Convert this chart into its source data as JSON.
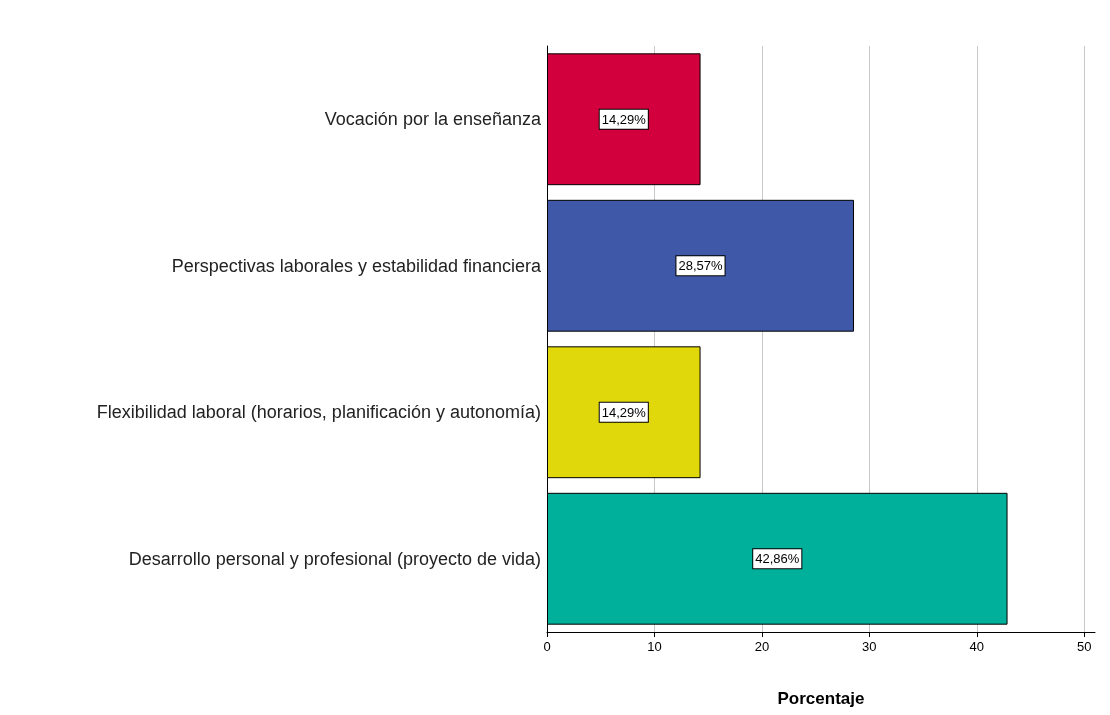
{
  "chart_data": {
    "type": "bar",
    "orientation": "horizontal",
    "xlabel": "Porcentaje",
    "categories": [
      "Vocación por la enseñanza",
      "Perspectivas laborales y estabilidad financiera",
      "Flexibilidad laboral (horarios, planificación y autonomía)",
      "Desarrollo personal y profesional (proyecto de vida)"
    ],
    "values": [
      14.29,
      28.57,
      14.29,
      42.86
    ],
    "colors": [
      "#d2003c",
      "#3f59a8",
      "#e1d80b",
      "#00b09b"
    ],
    "value_labels": [
      "14,29%",
      "28,57%",
      "14,29%",
      "42,86%"
    ],
    "xlim": [
      0,
      51
    ],
    "xticks": [
      0,
      10,
      20,
      30,
      40,
      50
    ],
    "grid": "x"
  }
}
